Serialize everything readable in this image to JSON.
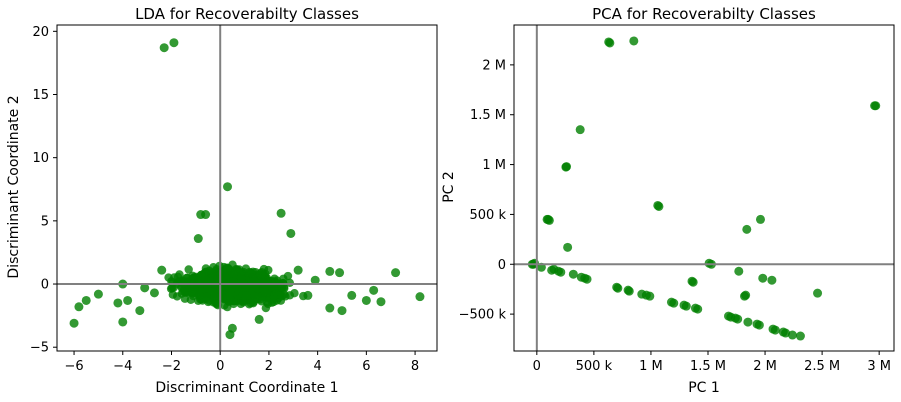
{
  "chart_data": [
    {
      "type": "scatter",
      "title": "LDA for Recoverabilty Classes",
      "xlabel": "Discriminant Coordinate 1",
      "ylabel": "Discriminant Coordinate 2",
      "xlim": [
        -6.7,
        8.9
      ],
      "ylim": [
        -5.3,
        20.5
      ],
      "xticks": [
        -6,
        -4,
        -2,
        0,
        2,
        4,
        6,
        8
      ],
      "xtick_labels": [
        "−6",
        "−4",
        "−2",
        "0",
        "2",
        "4",
        "6",
        "8"
      ],
      "yticks": [
        -5,
        0,
        5,
        10,
        15,
        20
      ],
      "ytick_labels": [
        "−5",
        "0",
        "5",
        "10",
        "15",
        "20"
      ],
      "reference_lines": {
        "x": 0,
        "y": 0,
        "color": "#808080"
      },
      "grid": false,
      "legend": "none",
      "color": "#008000",
      "alpha": 0.8,
      "cluster": {
        "center": [
          0.5,
          -0.2
        ],
        "spread": [
          1.45,
          0.95
        ],
        "count": 1600
      },
      "points": [
        [
          -1.9,
          19.1
        ],
        [
          -2.3,
          18.7
        ],
        [
          0.3,
          7.7
        ],
        [
          -0.8,
          5.5
        ],
        [
          -0.6,
          5.5
        ],
        [
          2.5,
          5.6
        ],
        [
          2.9,
          4.0
        ],
        [
          -0.9,
          3.6
        ],
        [
          -6.0,
          -3.1
        ],
        [
          -5.8,
          -1.8
        ],
        [
          -5.5,
          -1.3
        ],
        [
          -5.0,
          -0.8
        ],
        [
          -4.2,
          -1.5
        ],
        [
          -4.0,
          -3.0
        ],
        [
          -3.8,
          -1.3
        ],
        [
          -4.0,
          0.0
        ],
        [
          -3.3,
          -2.1
        ],
        [
          -3.1,
          -0.3
        ],
        [
          4.5,
          1.0
        ],
        [
          4.9,
          0.9
        ],
        [
          4.5,
          -1.9
        ],
        [
          5.0,
          -2.1
        ],
        [
          5.4,
          -0.9
        ],
        [
          6.0,
          -1.3
        ],
        [
          6.3,
          -0.5
        ],
        [
          6.6,
          -1.4
        ],
        [
          7.2,
          0.9
        ],
        [
          8.2,
          -1.0
        ],
        [
          0.5,
          -3.5
        ],
        [
          0.4,
          -4.0
        ],
        [
          1.6,
          -2.8
        ],
        [
          3.2,
          1.1
        ],
        [
          3.6,
          -0.9
        ],
        [
          3.9,
          0.3
        ],
        [
          -2.4,
          1.1
        ],
        [
          -2.7,
          -0.7
        ]
      ]
    },
    {
      "type": "scatter",
      "title": "PCA for Recoverabilty Classes",
      "xlabel": "PC 1",
      "ylabel": "PC 2",
      "xlim": [
        -200000,
        3130000
      ],
      "ylim": [
        -870000,
        2400000
      ],
      "xticks": [
        0,
        500000,
        1000000,
        1500000,
        2000000,
        2500000,
        3000000
      ],
      "xtick_labels": [
        "0",
        "500 k",
        "1 M",
        "1.5 M",
        "2 M",
        "2.5 M",
        "3 M"
      ],
      "yticks": [
        -500000,
        0,
        500000,
        1000000,
        1500000,
        2000000
      ],
      "ytick_labels": [
        "−500 k",
        "0",
        "500 k",
        "1 M",
        "1.5 M",
        "2 M"
      ],
      "reference_lines": {
        "x": 0,
        "y": 0,
        "color": "#808080"
      },
      "grid": false,
      "legend": "none",
      "color": "#008000",
      "alpha": 0.8,
      "points": [
        [
          -40000,
          0
        ],
        [
          -30000,
          0
        ],
        [
          -20000,
          10000
        ],
        [
          40000,
          -30000
        ],
        [
          90000,
          450000
        ],
        [
          100000,
          450000
        ],
        [
          110000,
          440000
        ],
        [
          130000,
          -60000
        ],
        [
          150000,
          -50000
        ],
        [
          190000,
          -70000
        ],
        [
          210000,
          -80000
        ],
        [
          260000,
          980000
        ],
        [
          255000,
          975000
        ],
        [
          270000,
          170000
        ],
        [
          320000,
          -100000
        ],
        [
          380000,
          1350000
        ],
        [
          390000,
          -130000
        ],
        [
          420000,
          -140000
        ],
        [
          440000,
          -150000
        ],
        [
          640000,
          2220000
        ],
        [
          630000,
          2230000
        ],
        [
          850000,
          2240000
        ],
        [
          700000,
          -230000
        ],
        [
          710000,
          -240000
        ],
        [
          800000,
          -260000
        ],
        [
          810000,
          -270000
        ],
        [
          920000,
          -300000
        ],
        [
          960000,
          -310000
        ],
        [
          990000,
          -320000
        ],
        [
          1060000,
          590000
        ],
        [
          1070000,
          580000
        ],
        [
          1180000,
          -380000
        ],
        [
          1200000,
          -390000
        ],
        [
          1290000,
          -410000
        ],
        [
          1310000,
          -420000
        ],
        [
          1360000,
          -170000
        ],
        [
          1370000,
          -180000
        ],
        [
          1390000,
          -440000
        ],
        [
          1410000,
          -450000
        ],
        [
          1510000,
          10000
        ],
        [
          1530000,
          0
        ],
        [
          1680000,
          -520000
        ],
        [
          1700000,
          -530000
        ],
        [
          1740000,
          -540000
        ],
        [
          1760000,
          -550000
        ],
        [
          1770000,
          -70000
        ],
        [
          1820000,
          -320000
        ],
        [
          1830000,
          -310000
        ],
        [
          1840000,
          350000
        ],
        [
          1850000,
          -580000
        ],
        [
          1930000,
          -600000
        ],
        [
          1950000,
          -610000
        ],
        [
          1960000,
          450000
        ],
        [
          1980000,
          -140000
        ],
        [
          2060000,
          -160000
        ],
        [
          2070000,
          -650000
        ],
        [
          2090000,
          -660000
        ],
        [
          2160000,
          -680000
        ],
        [
          2180000,
          -690000
        ],
        [
          2240000,
          -710000
        ],
        [
          2310000,
          -720000
        ],
        [
          2460000,
          -290000
        ],
        [
          2960000,
          1590000
        ],
        [
          2970000,
          1590000
        ]
      ]
    }
  ]
}
